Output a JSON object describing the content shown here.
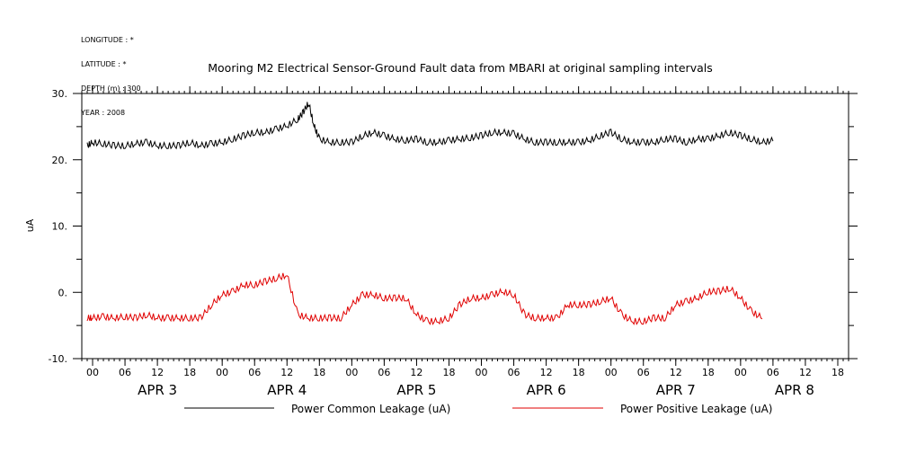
{
  "header": {
    "longitude": "LONGITUDE : *",
    "latitude": "LATITUDE : *",
    "depth": "DEPTH (m) : 300",
    "year": "YEAR : 2008"
  },
  "chart_data": {
    "type": "line",
    "title": "Mooring M2 Electrical Sensor-Ground Fault data from MBARI at original sampling intervals",
    "xlabel": "",
    "ylabel": "uA",
    "ylim": [
      -10,
      30
    ],
    "xlim_hours": [
      -2,
      140
    ],
    "y_ticks": [
      -10,
      0,
      10,
      20,
      30
    ],
    "y_tick_labels": [
      "-10.",
      "0.",
      "10.",
      "20.",
      "30."
    ],
    "x_ticks_hours": [
      0,
      6,
      12,
      18,
      24,
      30,
      36,
      42,
      48,
      54,
      60,
      66,
      72,
      78,
      84,
      90,
      96,
      102,
      108,
      114,
      120,
      126,
      132,
      138
    ],
    "x_tick_labels": [
      "00",
      "06",
      "12",
      "18",
      "00",
      "06",
      "12",
      "18",
      "00",
      "06",
      "12",
      "18",
      "00",
      "06",
      "12",
      "18",
      "00",
      "06",
      "12",
      "18",
      "00",
      "06",
      "12",
      "18"
    ],
    "day_labels": [
      "APR  3",
      "APR  4",
      "APR  5",
      "APR  6",
      "APR  7",
      "APR  8"
    ],
    "day_label_hours": [
      12,
      36,
      60,
      84,
      108,
      130
    ],
    "legend_position": "bottom",
    "series": [
      {
        "name": "Power Common Leakage (uA)",
        "color": "#000000",
        "points": [
          [
            -1,
            22
          ],
          [
            0,
            22.5
          ],
          [
            2,
            22.3
          ],
          [
            4,
            22
          ],
          [
            6,
            22
          ],
          [
            8,
            22.3
          ],
          [
            10,
            22.5
          ],
          [
            12,
            22
          ],
          [
            14,
            22
          ],
          [
            16,
            22
          ],
          [
            18,
            22.5
          ],
          [
            20,
            22
          ],
          [
            22,
            22.3
          ],
          [
            24,
            22.5
          ],
          [
            26,
            23
          ],
          [
            28,
            23.5
          ],
          [
            30,
            24
          ],
          [
            32,
            24
          ],
          [
            34,
            24.5
          ],
          [
            36,
            25
          ],
          [
            38,
            26
          ],
          [
            39,
            27
          ],
          [
            40,
            28.5
          ],
          [
            41,
            25
          ],
          [
            42,
            23
          ],
          [
            44,
            22.5
          ],
          [
            46,
            22.5
          ],
          [
            48,
            22.5
          ],
          [
            50,
            23.5
          ],
          [
            52,
            24
          ],
          [
            54,
            23.5
          ],
          [
            56,
            23
          ],
          [
            58,
            22.8
          ],
          [
            60,
            23
          ],
          [
            62,
            22.5
          ],
          [
            64,
            22.5
          ],
          [
            66,
            22.8
          ],
          [
            68,
            23
          ],
          [
            70,
            23.2
          ],
          [
            72,
            23.5
          ],
          [
            74,
            24
          ],
          [
            76,
            24
          ],
          [
            78,
            23.8
          ],
          [
            80,
            23
          ],
          [
            82,
            22.5
          ],
          [
            84,
            22.5
          ],
          [
            86,
            22.5
          ],
          [
            88,
            22.5
          ],
          [
            90,
            22.5
          ],
          [
            92,
            22.8
          ],
          [
            94,
            23.5
          ],
          [
            96,
            24
          ],
          [
            98,
            23
          ],
          [
            100,
            22.5
          ],
          [
            102,
            22.5
          ],
          [
            104,
            22.5
          ],
          [
            106,
            23
          ],
          [
            108,
            23
          ],
          [
            110,
            22.5
          ],
          [
            112,
            23
          ],
          [
            114,
            23
          ],
          [
            116,
            23.5
          ],
          [
            118,
            24
          ],
          [
            120,
            23.5
          ],
          [
            122,
            23
          ],
          [
            124,
            22.5
          ],
          [
            126,
            22.8
          ]
        ]
      },
      {
        "name": "Power Positive Leakage (uA)",
        "color": "#e00000",
        "points": [
          [
            -1,
            -4
          ],
          [
            0,
            -4
          ],
          [
            2,
            -3.8
          ],
          [
            4,
            -4
          ],
          [
            6,
            -3.8
          ],
          [
            8,
            -4
          ],
          [
            10,
            -3.5
          ],
          [
            12,
            -4
          ],
          [
            14,
            -4
          ],
          [
            16,
            -4
          ],
          [
            18,
            -4
          ],
          [
            20,
            -4
          ],
          [
            22,
            -2
          ],
          [
            24,
            -0.5
          ],
          [
            26,
            0
          ],
          [
            28,
            1
          ],
          [
            30,
            1
          ],
          [
            32,
            1.5
          ],
          [
            34,
            2
          ],
          [
            36,
            2.5
          ],
          [
            38,
            -3.5
          ],
          [
            40,
            -4
          ],
          [
            42,
            -4
          ],
          [
            44,
            -4
          ],
          [
            46,
            -4
          ],
          [
            48,
            -2
          ],
          [
            50,
            -0.5
          ],
          [
            52,
            -0.5
          ],
          [
            54,
            -1
          ],
          [
            56,
            -1
          ],
          [
            58,
            -1
          ],
          [
            60,
            -3.5
          ],
          [
            62,
            -4.5
          ],
          [
            64,
            -4.5
          ],
          [
            66,
            -4
          ],
          [
            68,
            -2
          ],
          [
            70,
            -1
          ],
          [
            72,
            -1
          ],
          [
            74,
            -0.5
          ],
          [
            76,
            0
          ],
          [
            78,
            -0.5
          ],
          [
            80,
            -3.5
          ],
          [
            82,
            -4
          ],
          [
            84,
            -4
          ],
          [
            86,
            -4
          ],
          [
            88,
            -2
          ],
          [
            90,
            -2
          ],
          [
            92,
            -2
          ],
          [
            94,
            -1.5
          ],
          [
            96,
            -1
          ],
          [
            98,
            -3.5
          ],
          [
            100,
            -4.5
          ],
          [
            102,
            -4.5
          ],
          [
            104,
            -4
          ],
          [
            106,
            -4
          ],
          [
            108,
            -2
          ],
          [
            110,
            -1.5
          ],
          [
            112,
            -1
          ],
          [
            114,
            0
          ],
          [
            116,
            0
          ],
          [
            118,
            0.5
          ],
          [
            120,
            -1
          ],
          [
            122,
            -3
          ],
          [
            124,
            -4
          ]
        ]
      }
    ]
  }
}
